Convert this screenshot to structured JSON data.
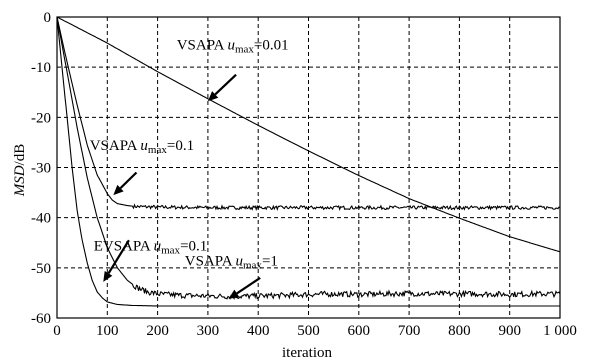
{
  "chart_data": {
    "type": "line",
    "xlabel": "iteration",
    "ylabel_italic": "MSD",
    "ylabel_unit": "/dB",
    "xlim": [
      0,
      1000
    ],
    "ylim": [
      -60,
      0
    ],
    "x_ticks": [
      0,
      100,
      200,
      300,
      400,
      500,
      600,
      700,
      800,
      900,
      1000
    ],
    "x_tick_labels": [
      "0",
      "100",
      "200",
      "300",
      "400",
      "500",
      "600",
      "700",
      "800",
      "900",
      "1 000"
    ],
    "y_ticks": [
      0,
      -10,
      -20,
      -30,
      -40,
      -50,
      -60
    ],
    "y_tick_labels": [
      "0",
      "-10",
      "-20",
      "-30",
      "-40",
      "-50",
      "-60"
    ],
    "grid": true,
    "series": [
      {
        "name_main": "VSAPA ",
        "name_var": "u",
        "name_sub": "max",
        "name_rest": "=0.01",
        "x": [
          0,
          100,
          200,
          300,
          400,
          500,
          600,
          700,
          800,
          900,
          1000
        ],
        "y": [
          0,
          -5.2,
          -10.9,
          -16.3,
          -21.6,
          -26.7,
          -31.6,
          -36.2,
          -40.1,
          -43.8,
          -46.8
        ],
        "noise": 0
      },
      {
        "name_main": "VSAPA ",
        "name_var": "u",
        "name_sub": "max",
        "name_rest": "=0.1",
        "x": [
          0,
          20,
          40,
          60,
          80,
          100,
          110,
          120,
          140,
          160,
          200,
          300,
          400,
          500,
          600,
          700,
          800,
          900,
          1000
        ],
        "y": [
          0,
          -9,
          -17.5,
          -25.5,
          -31.5,
          -35.2,
          -36.5,
          -37.2,
          -37.6,
          -37.8,
          -37.9,
          -38,
          -38,
          -38,
          -38,
          -38,
          -38,
          -38,
          -38
        ],
        "noise": 0.35
      },
      {
        "name_main": "EVSAPA ",
        "name_var": "u",
        "name_sub": "max",
        "name_rest": "=0.1",
        "x": [
          0,
          10,
          20,
          30,
          40,
          50,
          60,
          70,
          80,
          90,
          100,
          120,
          150,
          200,
          300,
          400,
          500,
          600,
          700,
          800,
          900,
          1000
        ],
        "y": [
          0,
          -10,
          -20,
          -30,
          -38.5,
          -44.5,
          -49,
          -52.5,
          -54.8,
          -56,
          -56.8,
          -57.3,
          -57.5,
          -57.6,
          -57.6,
          -57.6,
          -57.6,
          -57.6,
          -57.6,
          -57.6,
          -57.6,
          -57.6
        ],
        "noise": 0
      },
      {
        "name_main": "VSAPA ",
        "name_var": "u",
        "name_sub": "max",
        "name_rest": "=1",
        "x": [
          0,
          20,
          40,
          60,
          80,
          100,
          120,
          140,
          160,
          180,
          200,
          250,
          300,
          350,
          400,
          450,
          500,
          550,
          600,
          650,
          700,
          750,
          800,
          850,
          900,
          950,
          1000
        ],
        "y": [
          0,
          -11,
          -22,
          -32,
          -40,
          -46,
          -50,
          -52.5,
          -54,
          -54.8,
          -55.2,
          -55.5,
          -55.6,
          -55.7,
          -55.6,
          -55.5,
          -55.3,
          -55.2,
          -55.3,
          -55.2,
          -55.1,
          -55.2,
          -55.2,
          -55.2,
          -55.3,
          -55.2,
          -55.2
        ],
        "noise": 0.55
      }
    ],
    "annotations": [
      {
        "series": 0,
        "text_x": 238,
        "text_y": -6.5,
        "tail_x": 356,
        "tail_y": -11.5,
        "tip_x": 300,
        "tip_y": -16.8
      },
      {
        "series": 1,
        "text_x": 65,
        "text_y": -26.5,
        "tail_x": 158,
        "tail_y": -31,
        "tip_x": 112,
        "tip_y": -35.5
      },
      {
        "series": 2,
        "text_x": 73,
        "text_y": -46.5,
        "tail_x": 143,
        "tail_y": -44.5,
        "tip_x": 92,
        "tip_y": -52.8
      },
      {
        "series": 3,
        "text_x": 254,
        "text_y": -49.5,
        "tail_x": 404,
        "tail_y": -52,
        "tip_x": 341,
        "tip_y": -56.2
      }
    ]
  }
}
